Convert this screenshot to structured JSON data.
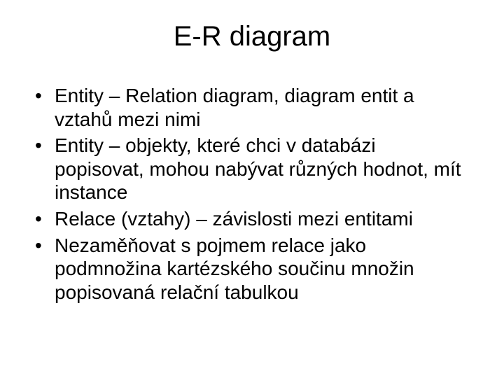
{
  "slide": {
    "title": "E-R diagram",
    "bullets": [
      "Entity – Relation diagram, diagram entit a vztahů mezi nimi",
      "Entity – objekty, které chci v databázi popisovat, mohou nabývat různých hodnot, mít instance",
      " Relace (vztahy) – závislosti mezi entitami",
      "Nezaměňovat s pojmem relace jako podmnožina kartézského součinu množin popisovaná relační tabulkou"
    ],
    "style": {
      "background_color": "#ffffff",
      "text_color": "#000000",
      "title_fontsize": 40,
      "body_fontsize": 28,
      "font_family": "Arial"
    }
  }
}
